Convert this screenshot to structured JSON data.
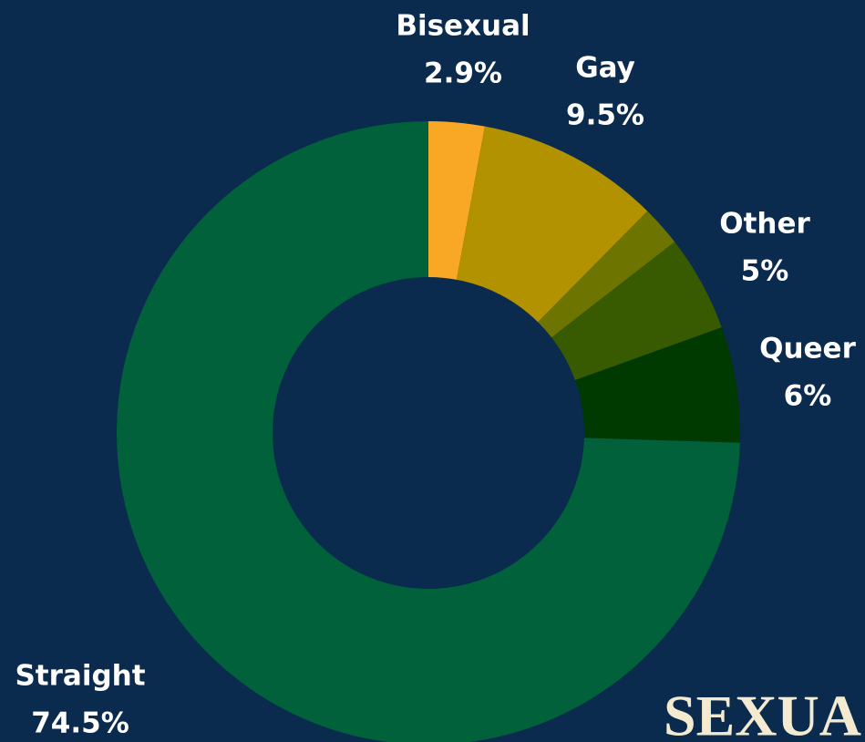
{
  "chart_data": {
    "type": "donut",
    "categories": [
      "Bisexual",
      "Gay",
      null,
      "Other",
      "Queer",
      "Straight"
    ],
    "values": [
      2.9,
      9.5,
      2.1,
      5,
      6,
      74.5
    ],
    "value_labels": [
      "2.9%",
      "9.5%",
      null,
      "5%",
      "6%",
      "74.5%"
    ],
    "colors": [
      "#f9a825",
      "#b39200",
      "#6e7400",
      "#385a00",
      "#003a00",
      "#00613b"
    ],
    "watermark": "SEXUA"
  }
}
